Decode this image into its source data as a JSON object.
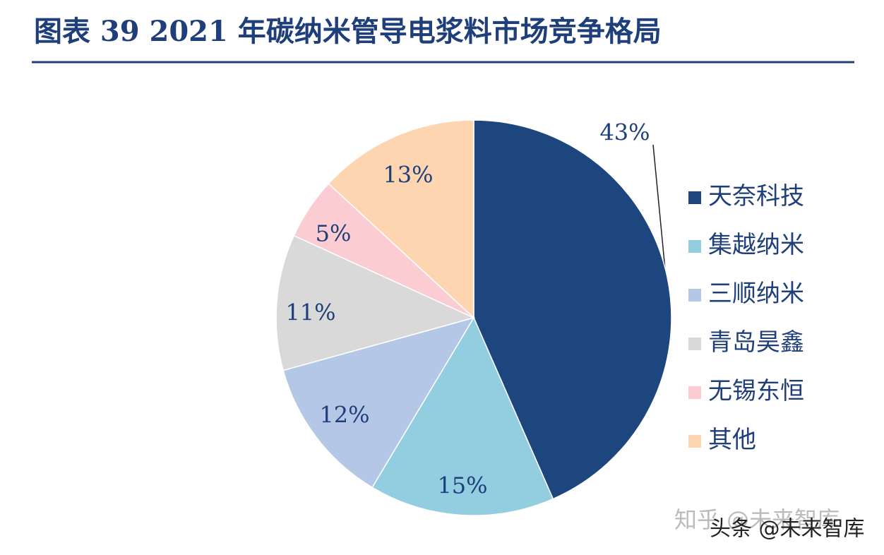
{
  "chart_data": {
    "type": "pie",
    "title": "图表 39   2021 年碳纳米管导电浆料市场竞争格局",
    "categories": [
      "天奈科技",
      "集越纳米",
      "三顺纳米",
      "青岛昊鑫",
      "无锡东恒",
      "其他"
    ],
    "values": [
      43,
      15,
      12,
      11,
      5,
      13
    ],
    "value_labels": [
      "43%",
      "15%",
      "12%",
      "11%",
      "5%",
      "13%"
    ],
    "colors": [
      "#1d467f",
      "#92cde0",
      "#b4c7e7",
      "#d9d9d9",
      "#fbcdd2",
      "#fdd5b1"
    ],
    "legend": "right"
  },
  "watermarks": [
    "知乎 @未来智库",
    "头条 @未来智库"
  ]
}
